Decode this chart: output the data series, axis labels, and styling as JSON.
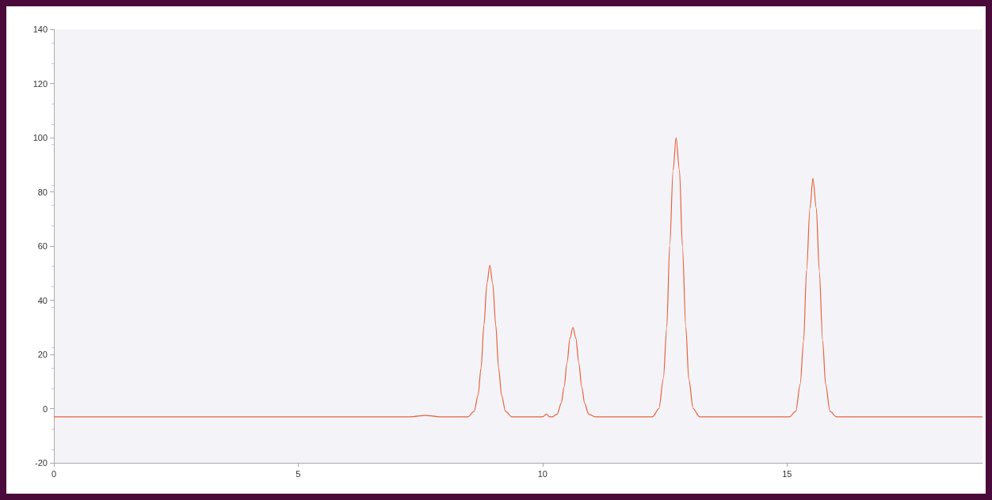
{
  "chart_data": {
    "type": "line",
    "xlim": [
      0,
      19
    ],
    "xticks": [
      0,
      5,
      10,
      15
    ],
    "ylim": [
      -20,
      140
    ],
    "yticks": [
      -20,
      0,
      20,
      40,
      60,
      80,
      100,
      120,
      140
    ],
    "grid": false,
    "marker": "none",
    "line_style": "solid",
    "series": [
      {
        "color": "#e8603c",
        "x": [
          0,
          4,
          7.3,
          7.6,
          7.9,
          8.47,
          8.6,
          8.68,
          8.74,
          8.8,
          8.86,
          8.92,
          8.98,
          9.04,
          9.1,
          9.16,
          9.24,
          9.37,
          10.0,
          10.08,
          10.14,
          10.2,
          10.3,
          10.38,
          10.44,
          10.5,
          10.56,
          10.62,
          10.68,
          10.74,
          10.8,
          10.86,
          10.94,
          11.07,
          12.15,
          12.25,
          12.38,
          12.47,
          12.54,
          12.6,
          12.67,
          12.73,
          12.8,
          12.86,
          12.93,
          12.99,
          13.08,
          13.21,
          14.7,
          15.05,
          15.18,
          15.27,
          15.34,
          15.4,
          15.47,
          15.53,
          15.6,
          15.66,
          15.73,
          15.79,
          15.88,
          16.01,
          19
        ],
        "values": [
          -3,
          -3,
          -3,
          -2.5,
          -3,
          -3,
          -1,
          5,
          15,
          31,
          46,
          53,
          46,
          31,
          15,
          5,
          -1,
          -3,
          -3,
          -2,
          -3,
          -3,
          -2,
          2,
          8,
          17,
          26,
          30,
          26,
          17,
          8,
          2,
          -2,
          -3,
          -3,
          -3,
          0,
          11,
          30,
          60,
          88,
          100,
          88,
          60,
          30,
          11,
          0,
          -3,
          -3,
          -3,
          -1,
          9,
          25,
          51,
          74,
          85,
          74,
          51,
          25,
          9,
          -1,
          -3,
          -3
        ]
      }
    ]
  }
}
